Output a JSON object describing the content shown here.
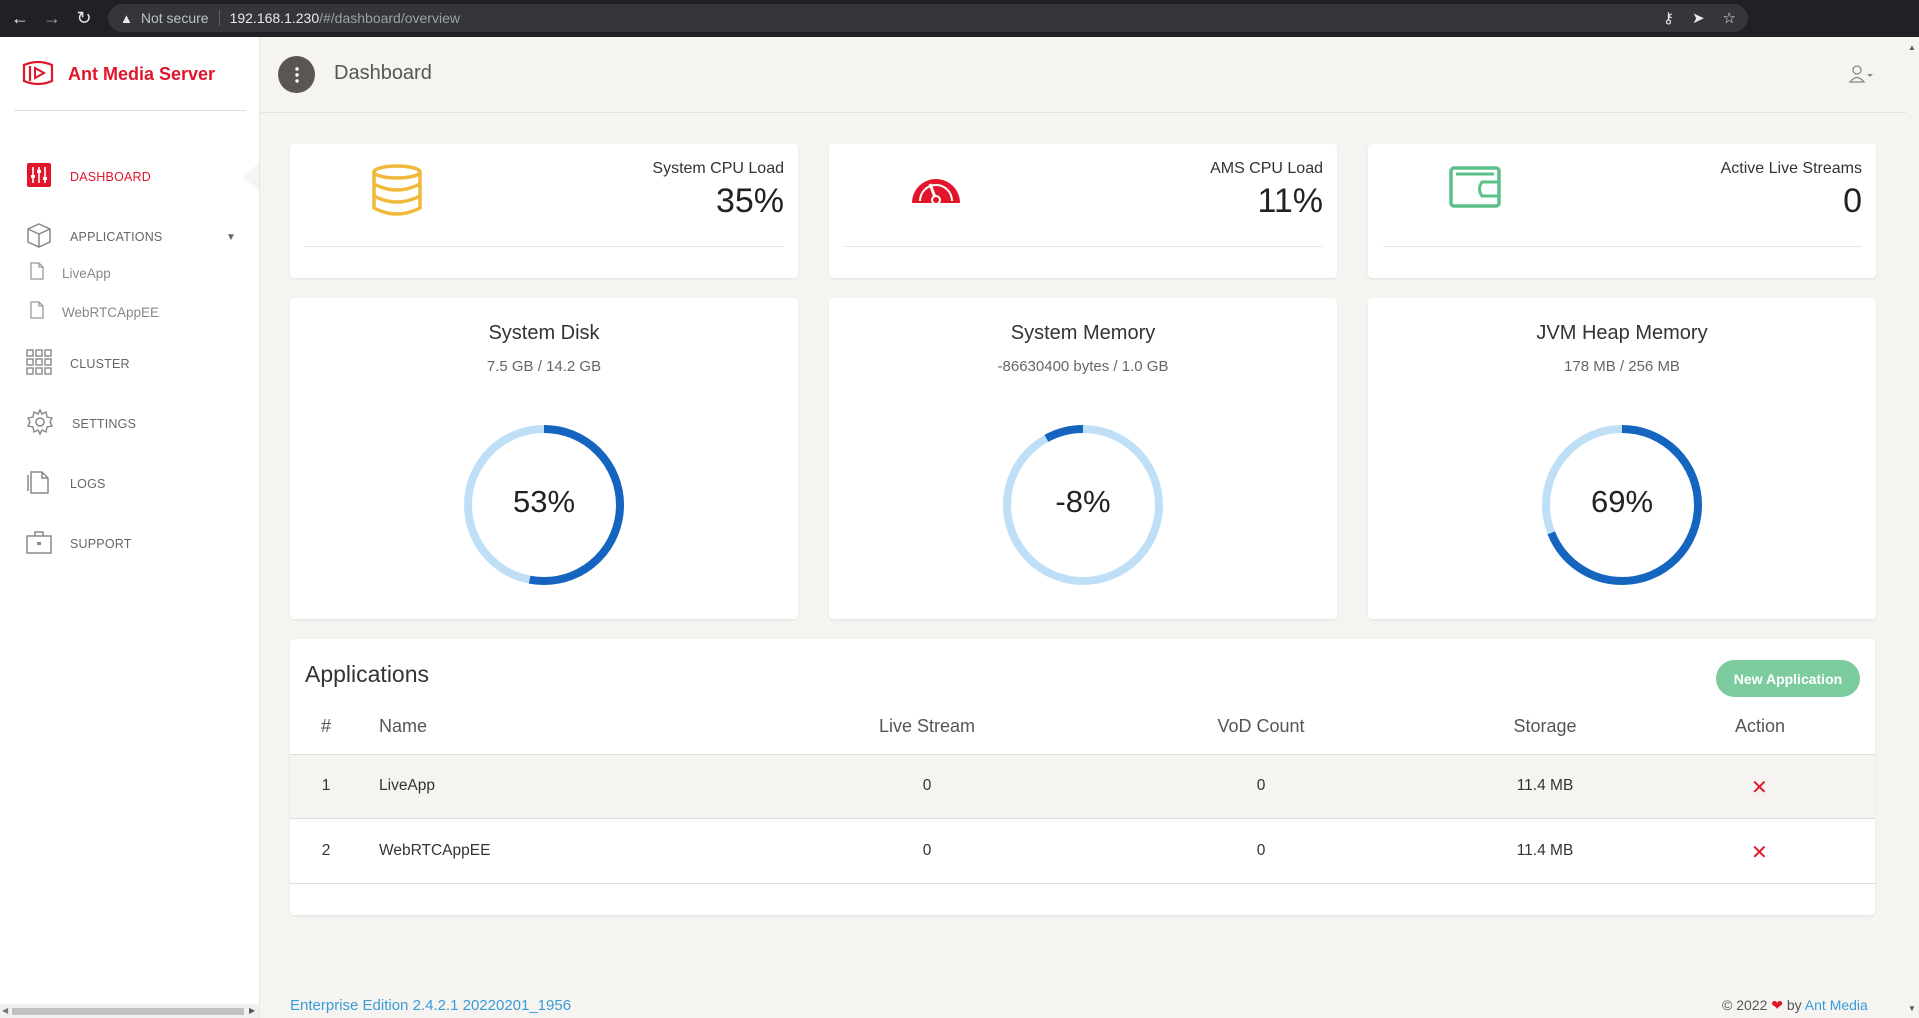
{
  "browser": {
    "security_label": "Not secure",
    "url_host": "192.168.1.230",
    "url_path": "/#/dashboard/overview"
  },
  "sidebar": {
    "brand": "Ant Media Server",
    "items": [
      {
        "label": "DASHBOARD",
        "icon": "sliders-icon",
        "active": true
      },
      {
        "label": "APPLICATIONS",
        "icon": "box-icon",
        "active": false
      },
      {
        "label": "CLUSTER",
        "icon": "grid-icon",
        "active": false
      },
      {
        "label": "SETTINGS",
        "icon": "gear-icon",
        "active": false
      },
      {
        "label": "LOGS",
        "icon": "document-icon",
        "active": false
      },
      {
        "label": "SUPPORT",
        "icon": "briefcase-icon",
        "active": false
      }
    ],
    "sub_items": [
      {
        "label": "LiveApp",
        "icon": "file-icon"
      },
      {
        "label": "WebRTCAppEE",
        "icon": "file-icon"
      }
    ]
  },
  "header": {
    "title": "Dashboard"
  },
  "stats": [
    {
      "label": "System CPU Load",
      "value": "35%",
      "icon": "database-icon",
      "color": "#f0b93a"
    },
    {
      "label": "AMS CPU Load",
      "value": "11%",
      "icon": "speedometer-icon",
      "color": "#e0162b"
    },
    {
      "label": "Active Live Streams",
      "value": "0",
      "icon": "wallet-icon",
      "color": "#5cc08a"
    }
  ],
  "gauges": [
    {
      "title": "System Disk",
      "subtitle": "7.5 GB / 14.2 GB",
      "percent_label": "53%",
      "fill_fraction": 0.53
    },
    {
      "title": "System Memory",
      "subtitle": "-86630400 bytes / 1.0 GB",
      "percent_label": "-8%",
      "fill_fraction": -0.08
    },
    {
      "title": "JVM Heap Memory",
      "subtitle": "178 MB / 256 MB",
      "percent_label": "69%",
      "fill_fraction": 0.69
    }
  ],
  "gauge_colors": {
    "track": "#bfdff7",
    "fill": "#1565c0"
  },
  "applications": {
    "title": "Applications",
    "new_button": "New Application",
    "columns": [
      "#",
      "Name",
      "Live Stream",
      "VoD Count",
      "Storage",
      "Action"
    ],
    "rows": [
      {
        "index": "1",
        "name": "LiveApp",
        "live": "0",
        "vod": "0",
        "storage": "11.4 MB"
      },
      {
        "index": "2",
        "name": "WebRTCAppEE",
        "live": "0",
        "vod": "0",
        "storage": "11.4 MB"
      }
    ]
  },
  "footer": {
    "edition": "Enterprise Edition 2.4.2.1 20220201_1956",
    "copyright": "© 2022",
    "by": "by",
    "company": "Ant Media"
  },
  "accent_color": "#e0162b"
}
